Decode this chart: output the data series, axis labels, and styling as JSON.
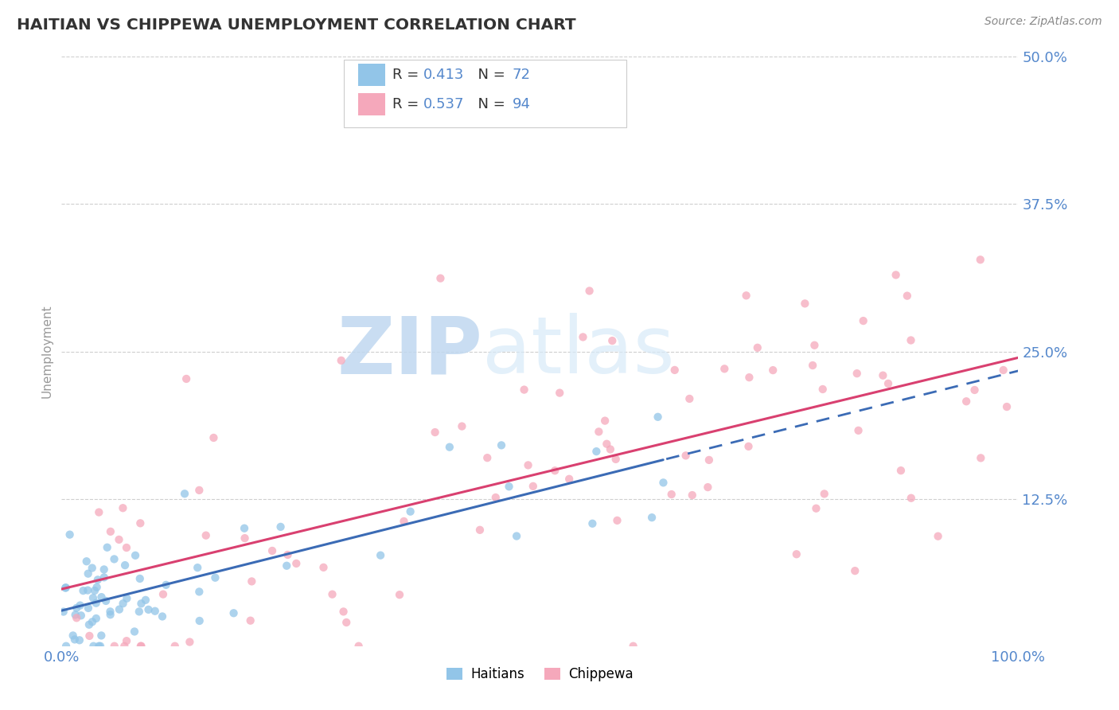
{
  "title": "HAITIAN VS CHIPPEWA UNEMPLOYMENT CORRELATION CHART",
  "source": "Source: ZipAtlas.com",
  "ylabel": "Unemployment",
  "xlim": [
    0,
    1
  ],
  "ylim": [
    0,
    0.5
  ],
  "yticks": [
    0.0,
    0.125,
    0.25,
    0.375,
    0.5
  ],
  "haitian_color": "#92C5E8",
  "chippewa_color": "#F5A8BB",
  "haitian_line_color": "#3B6BB5",
  "chippewa_line_color": "#D94070",
  "background_color": "#FFFFFF",
  "grid_color": "#BBBBBB",
  "watermark_zip": "ZIP",
  "watermark_atlas": "atlas",
  "watermark_color": "#D8E8F5",
  "title_color": "#333333",
  "axis_tick_color": "#5588CC",
  "legend_R_color": "#5588CC",
  "legend_N_label_color": "#333333",
  "legend_N_value_color": "#5588CC",
  "haitian_R": "0.413",
  "haitian_N": "72",
  "chippewa_R": "0.537",
  "chippewa_N": "94",
  "source_color": "#888888"
}
